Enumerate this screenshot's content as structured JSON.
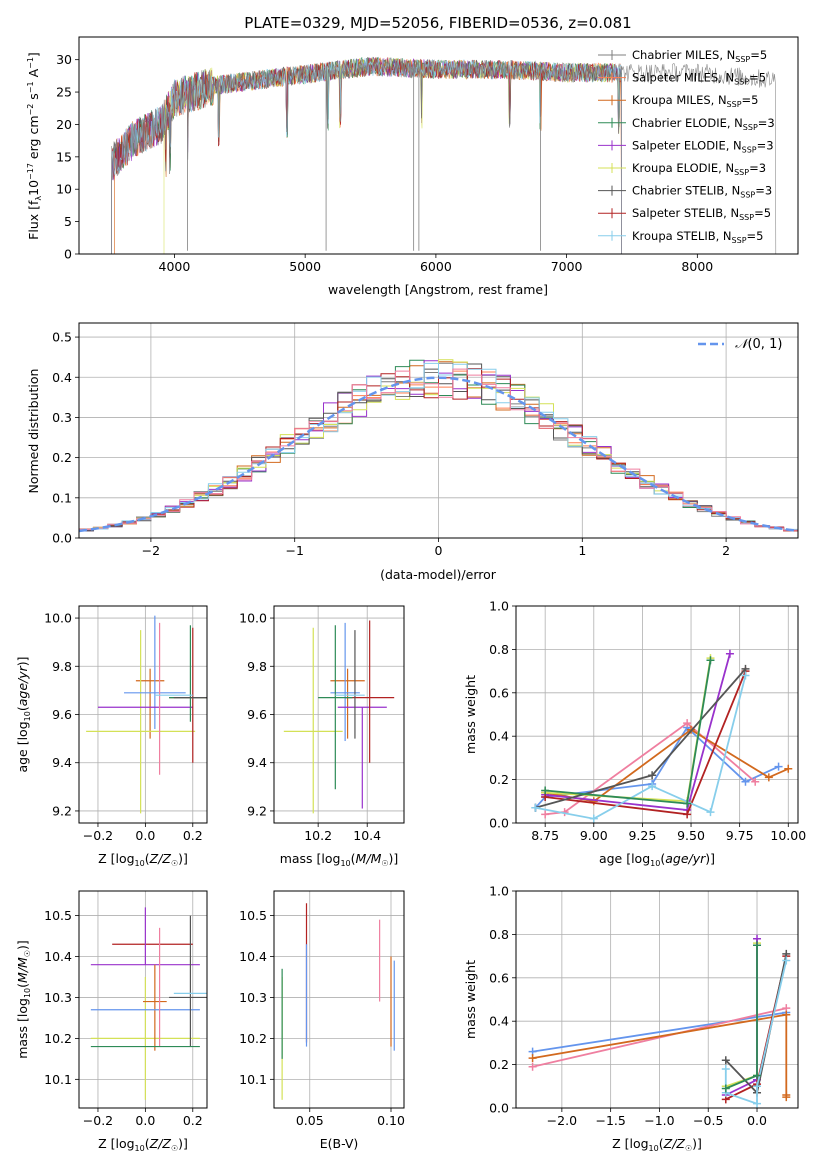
{
  "figure_title": "PLATE=0329, MJD=52056, FIBERID=0536, z=0.081",
  "colors": {
    "Chabrier MILES": "#7f7f7f",
    "Salpeter MILES": "#ff7f50",
    "Kroupa MILES": "#d2691e",
    "Chabrier ELODIE": "#2e8b57",
    "Salpeter ELODIE": "#9932cc",
    "Kroupa ELODIE": "#d4e157",
    "Chabrier STELIB": "#555555",
    "Salpeter STELIB": "#b22222",
    "Kroupa STELIB": "#87ceeb",
    "gauss": "#6495ed",
    "extra_blue": "#6a8fd8",
    "extra_pink": "#ef7fa0"
  },
  "chart_data": [
    {
      "type": "line",
      "id": "spectrum",
      "title": "PLATE=0329, MJD=52056, FIBERID=0536, z=0.081",
      "xlabel": "wavelength [Angstrom, rest frame]",
      "ylabel": "Flux [fλ10⁻¹⁷ erg cm⁻² s⁻¹ A⁻¹]",
      "xlim": [
        3270,
        8770
      ],
      "ylim": [
        0,
        33.5
      ],
      "xticks": [
        4000,
        5000,
        6000,
        7000,
        8000
      ],
      "yticks": [
        0,
        5,
        10,
        15,
        20,
        25,
        30
      ],
      "grid": false,
      "legend_position": "upper right",
      "legend": [
        {
          "label_html": "Chabrier MILES, N<tspan font-size='8' dy='3'>SSP</tspan><tspan dy='-3'>=5</tspan>",
          "color": "#7f7f7f"
        },
        {
          "label_html": "Salpeter MILES, N<tspan font-size='8' dy='3'>SSP</tspan><tspan dy='-3'>=5</tspan>",
          "color": "#ff7f50"
        },
        {
          "label_html": "Kroupa MILES, N<tspan font-size='8' dy='3'>SSP</tspan><tspan dy='-3'>=5</tspan>",
          "color": "#d2691e"
        },
        {
          "label_html": "Chabrier ELODIE, N<tspan font-size='8' dy='3'>SSP</tspan><tspan dy='-3'>=3</tspan>",
          "color": "#2e8b57"
        },
        {
          "label_html": "Salpeter ELODIE, N<tspan font-size='8' dy='3'>SSP</tspan><tspan dy='-3'>=3</tspan>",
          "color": "#9932cc"
        },
        {
          "label_html": "Kroupa ELODIE, N<tspan font-size='8' dy='3'>SSP</tspan><tspan dy='-3'>=3</tspan>",
          "color": "#d4e157"
        },
        {
          "label_html": "Chabrier STELIB, N<tspan font-size='8' dy='3'>SSP</tspan><tspan dy='-3'>=3</tspan>",
          "color": "#555555"
        },
        {
          "label_html": "Salpeter STELIB, N<tspan font-size='8' dy='3'>SSP</tspan><tspan dy='-3'>=5</tspan>",
          "color": "#b22222"
        },
        {
          "label_html": "Kroupa STELIB, N<tspan font-size='8' dy='3'>SSP</tspan><tspan dy='-3'>=5</tspan>",
          "color": "#87ceeb"
        }
      ],
      "data_series": {
        "color": "#808080",
        "x_range": [
          3520,
          8600
        ]
      },
      "spectrum_profile": [
        [
          3520,
          14
        ],
        [
          3700,
          18
        ],
        [
          3900,
          20
        ],
        [
          4000,
          24
        ],
        [
          4300,
          26
        ],
        [
          4700,
          27
        ],
        [
          5100,
          28
        ],
        [
          5500,
          29
        ],
        [
          6000,
          28.5
        ],
        [
          6500,
          28.5
        ],
        [
          7000,
          28
        ],
        [
          7500,
          28
        ],
        [
          8000,
          28
        ],
        [
          8500,
          27
        ]
      ],
      "absorption_lines": [
        3934,
        3969,
        4102,
        4340,
        4861,
        5175,
        5269,
        5890,
        6563,
        6800,
        7400
      ],
      "note": "model curves drawn with small deterministic noise around profile"
    },
    {
      "type": "histogram",
      "id": "residuals",
      "xlabel": "(data-model)/error",
      "ylabel": "Normed distribution",
      "xlim": [
        -2.5,
        2.5
      ],
      "ylim": [
        0,
        0.535
      ],
      "xticks": [
        -2,
        -1,
        0,
        1,
        2
      ],
      "yticks": [
        0.0,
        0.1,
        0.2,
        0.3,
        0.4,
        0.5
      ],
      "grid": true,
      "legend": [
        {
          "label": "𝒩(0, 1)",
          "color": "#6495ed",
          "style": "dashed"
        }
      ],
      "bin_width": 0.1,
      "note": "each model series drawn as a step histogram approximating a standard normal"
    },
    {
      "type": "scatter",
      "id": "age_vs_Z",
      "xlabel": "Z [log10(Z/Z☉)]",
      "ylabel": "age  [log10(age/yr)]",
      "xlim": [
        -0.28,
        0.26
      ],
      "ylim": [
        9.15,
        10.05
      ],
      "xticks": [
        -0.2,
        0.0,
        0.2
      ],
      "yticks": [
        9.2,
        9.4,
        9.6,
        9.8,
        10.0
      ],
      "grid": true,
      "errorbars": [
        {
          "x": 0.02,
          "y": 9.74,
          "xerr": 0.06,
          "yerr_low": 0.24,
          "yerr_high": 0.05,
          "color": "#d2691e"
        },
        {
          "x": -0.02,
          "y": 9.53,
          "xerr": 0.23,
          "yerr_low": 0.34,
          "yerr_high": 0.42,
          "color": "#d4e157"
        },
        {
          "x": 0.04,
          "y": 9.69,
          "xerr": 0.13,
          "yerr_low": 0.15,
          "yerr_high": 0.32,
          "color": "#6495ed"
        },
        {
          "x": 0.0,
          "y": 9.63,
          "xerr": 0.2,
          "yerr_low": 0.0,
          "yerr_high": 0.0,
          "color": "#9932cc"
        },
        {
          "x": 0.06,
          "y": 9.6,
          "xerr": 0.0,
          "yerr_low": 0.25,
          "yerr_high": 0.38,
          "color": "#ef7fa0"
        },
        {
          "x": 0.2,
          "y": 9.67,
          "xerr": 0.1,
          "yerr_low": 0.27,
          "yerr_high": 0.29,
          "color": "#b22222"
        },
        {
          "x": 0.19,
          "y": 9.67,
          "xerr": 0.09,
          "yerr_low": 0.1,
          "yerr_high": 0.3,
          "color": "#2e8b57"
        },
        {
          "x": 0.2,
          "y": 9.67,
          "xerr": 0.08,
          "yerr_low": 0.0,
          "yerr_high": 0.0,
          "color": "#555555"
        },
        {
          "x": 0.12,
          "y": 9.68,
          "xerr": 0.08,
          "yerr_low": 0.0,
          "yerr_high": 0.0,
          "color": "#87ceeb"
        }
      ]
    },
    {
      "type": "scatter",
      "id": "age_vs_mass",
      "xlabel": "mass [log10(M/M☉)]",
      "ylabel": "",
      "xlim": [
        10.02,
        10.55
      ],
      "ylim": [
        9.15,
        10.05
      ],
      "xticks": [
        10.2,
        10.4
      ],
      "yticks": [
        9.2,
        9.4,
        9.6,
        9.8,
        10.0
      ],
      "grid": true,
      "errorbars": [
        {
          "x": 10.32,
          "y": 9.74,
          "xerr": 0.07,
          "yerr_low": 0.24,
          "yerr_high": 0.05,
          "color": "#d2691e"
        },
        {
          "x": 10.18,
          "y": 9.53,
          "xerr": 0.12,
          "yerr_low": 0.34,
          "yerr_high": 0.43,
          "color": "#d4e157"
        },
        {
          "x": 10.31,
          "y": 9.69,
          "xerr": 0.06,
          "yerr_low": 0.2,
          "yerr_high": 0.29,
          "color": "#6495ed"
        },
        {
          "x": 10.38,
          "y": 9.63,
          "xerr": 0.1,
          "yerr_low": 0.42,
          "yerr_high": 0.0,
          "color": "#9932cc"
        },
        {
          "x": 10.41,
          "y": 9.67,
          "xerr": 0.1,
          "yerr_low": 0.27,
          "yerr_high": 0.32,
          "color": "#b22222"
        },
        {
          "x": 10.27,
          "y": 9.67,
          "xerr": 0.07,
          "yerr_low": 0.38,
          "yerr_high": 0.3,
          "color": "#2e8b57"
        },
        {
          "x": 10.35,
          "y": 9.6,
          "xerr": 0.0,
          "yerr_low": 0.1,
          "yerr_high": 0.35,
          "color": "#555555"
        },
        {
          "x": 10.33,
          "y": 9.68,
          "xerr": 0.06,
          "yerr_low": 0.0,
          "yerr_high": 0.0,
          "color": "#87ceeb"
        }
      ]
    },
    {
      "type": "line",
      "id": "massweight_vs_age",
      "xlabel": "age  [log10(age/yr)]",
      "ylabel": "mass weight",
      "xlim": [
        8.6,
        10.05
      ],
      "ylim": [
        0,
        1.0
      ],
      "xticks": [
        8.75,
        9.0,
        9.25,
        9.5,
        9.75,
        10.0
      ],
      "yticks": [
        0.0,
        0.2,
        0.4,
        0.6,
        0.8,
        1.0
      ],
      "grid": true,
      "series": [
        {
          "color": "#6495ed",
          "x": [
            8.7,
            8.75,
            9.3,
            9.48,
            9.78,
            9.95
          ],
          "y": [
            0.07,
            0.12,
            0.18,
            0.44,
            0.19,
            0.26
          ]
        },
        {
          "color": "#ef7fa0",
          "x": [
            8.75,
            8.85,
            9.48,
            9.83
          ],
          "y": [
            0.04,
            0.05,
            0.46,
            0.19
          ]
        },
        {
          "color": "#d2691e",
          "x": [
            8.75,
            9.0,
            9.5,
            9.9,
            10.0
          ],
          "y": [
            0.14,
            0.1,
            0.43,
            0.21,
            0.25
          ]
        },
        {
          "color": "#d4e157",
          "x": [
            8.75,
            9.48,
            9.6
          ],
          "y": [
            0.14,
            0.1,
            0.76
          ]
        },
        {
          "color": "#9932cc",
          "x": [
            8.75,
            9.48,
            9.7
          ],
          "y": [
            0.13,
            0.06,
            0.78
          ]
        },
        {
          "color": "#b22222",
          "x": [
            8.75,
            9.48,
            9.78
          ],
          "y": [
            0.12,
            0.04,
            0.7
          ]
        },
        {
          "color": "#555555",
          "x": [
            8.7,
            9.3,
            9.78
          ],
          "y": [
            0.07,
            0.22,
            0.71
          ]
        },
        {
          "color": "#87ceeb",
          "x": [
            8.7,
            9.0,
            9.3,
            9.6,
            9.78
          ],
          "y": [
            0.07,
            0.02,
            0.17,
            0.05,
            0.68
          ]
        },
        {
          "color": "#2e8b57",
          "x": [
            8.75,
            9.48,
            9.6
          ],
          "y": [
            0.15,
            0.09,
            0.75
          ]
        }
      ]
    },
    {
      "type": "scatter",
      "id": "mass_vs_Z",
      "xlabel": "Z [log10(Z/Z☉)]",
      "ylabel": "mass [log10(M/M☉)]",
      "xlim": [
        -0.28,
        0.26
      ],
      "ylim": [
        10.03,
        10.56
      ],
      "xticks": [
        -0.2,
        0.0,
        0.2
      ],
      "yticks": [
        10.1,
        10.2,
        10.3,
        10.4,
        10.5
      ],
      "grid": true,
      "errorbars": [
        {
          "x": 0.03,
          "y": 10.43,
          "xerr": 0.17,
          "yerr_low": 0.0,
          "yerr_high": 0.0,
          "color": "#b22222"
        },
        {
          "x": 0.0,
          "y": 10.38,
          "xerr": 0.23,
          "yerr_low": 0.0,
          "yerr_high": 0.14,
          "color": "#9932cc"
        },
        {
          "x": 0.0,
          "y": 10.2,
          "xerr": 0.23,
          "yerr_low": 0.15,
          "yerr_high": 0.15,
          "color": "#d4e157"
        },
        {
          "x": 0.04,
          "y": 10.29,
          "xerr": 0.05,
          "yerr_low": 0.12,
          "yerr_high": 0.09,
          "color": "#d2691e"
        },
        {
          "x": 0.0,
          "y": 10.27,
          "xerr": 0.23,
          "yerr_low": 0.0,
          "yerr_high": 0.0,
          "color": "#6495ed"
        },
        {
          "x": 0.06,
          "y": 10.33,
          "xerr": 0.0,
          "yerr_low": 0.15,
          "yerr_high": 0.14,
          "color": "#ef7fa0"
        },
        {
          "x": 0.19,
          "y": 10.3,
          "xerr": 0.09,
          "yerr_low": 0.12,
          "yerr_high": 0.2,
          "color": "#555555"
        },
        {
          "x": 0.0,
          "y": 10.18,
          "xerr": 0.23,
          "yerr_low": 0.0,
          "yerr_high": 0.0,
          "color": "#2e8b57"
        },
        {
          "x": 0.19,
          "y": 10.31,
          "xerr": 0.07,
          "yerr_low": 0.0,
          "yerr_high": 0.0,
          "color": "#87ceeb"
        }
      ]
    },
    {
      "type": "scatter",
      "id": "mass_vs_EBV",
      "xlabel": "E(B-V)",
      "ylabel": "",
      "xlim": [
        0.028,
        0.108
      ],
      "ylim": [
        10.03,
        10.56
      ],
      "xticks": [
        0.05,
        0.1
      ],
      "yticks": [
        10.1,
        10.2,
        10.3,
        10.4,
        10.5
      ],
      "grid": true,
      "errorbars": [
        {
          "x": 0.033,
          "y": 10.2,
          "xerr": 0.0,
          "yerr_low": 0.15,
          "yerr_high": 0.15,
          "color": "#d4e157"
        },
        {
          "x": 0.033,
          "y": 10.25,
          "xerr": 0.0,
          "yerr_low": 0.1,
          "yerr_high": 0.12,
          "color": "#2e8b57"
        },
        {
          "x": 0.048,
          "y": 10.38,
          "xerr": 0.0,
          "yerr_low": 0.19,
          "yerr_high": 0.15,
          "color": "#b22222"
        },
        {
          "x": 0.048,
          "y": 10.33,
          "xerr": 0.0,
          "yerr_low": 0.15,
          "yerr_high": 0.1,
          "color": "#6495ed"
        },
        {
          "x": 0.093,
          "y": 10.39,
          "xerr": 0.0,
          "yerr_low": 0.1,
          "yerr_high": 0.1,
          "color": "#ef7fa0"
        },
        {
          "x": 0.1,
          "y": 10.3,
          "xerr": 0.0,
          "yerr_low": 0.12,
          "yerr_high": 0.1,
          "color": "#d2691e"
        },
        {
          "x": 0.102,
          "y": 10.29,
          "xerr": 0.0,
          "yerr_low": 0.12,
          "yerr_high": 0.1,
          "color": "#6495ed"
        }
      ]
    },
    {
      "type": "line",
      "id": "massweight_vs_Z",
      "xlabel": "Z [log10(Z/Z☉)]",
      "ylabel": "mass weight",
      "xlim": [
        -2.47,
        0.42
      ],
      "ylim": [
        0,
        1.0
      ],
      "xticks": [
        -2.0,
        -1.5,
        -1.0,
        -0.5,
        0.0
      ],
      "yticks": [
        0.0,
        0.2,
        0.4,
        0.6,
        0.8,
        1.0
      ],
      "grid": true,
      "series": [
        {
          "color": "#6495ed",
          "x": [
            -2.3,
            0.3
          ],
          "y": [
            0.26,
            0.44
          ]
        },
        {
          "color": "#ef7fa0",
          "x": [
            -2.3,
            0.3
          ],
          "y": [
            0.19,
            0.46
          ]
        },
        {
          "color": "#d2691e",
          "x": [
            -2.3,
            0.3,
            0.3,
            0.3
          ],
          "y": [
            0.23,
            0.43,
            0.06,
            0.05
          ]
        },
        {
          "color": "#d4e157",
          "x": [
            -0.32,
            0.0,
            0.0
          ],
          "y": [
            0.1,
            0.15,
            0.76
          ]
        },
        {
          "color": "#9932cc",
          "x": [
            -0.32,
            0.0,
            0.0
          ],
          "y": [
            0.06,
            0.13,
            0.78
          ]
        },
        {
          "color": "#b22222",
          "x": [
            -0.32,
            0.0,
            0.3
          ],
          "y": [
            0.04,
            0.11,
            0.7
          ]
        },
        {
          "color": "#555555",
          "x": [
            -0.32,
            0.0,
            0.3
          ],
          "y": [
            0.22,
            0.07,
            0.71
          ]
        },
        {
          "color": "#87ceeb",
          "x": [
            -0.32,
            -0.32,
            0.0,
            0.0,
            0.3
          ],
          "y": [
            0.18,
            0.07,
            0.02,
            0.1,
            0.68
          ]
        },
        {
          "color": "#2e8b57",
          "x": [
            -0.32,
            0.0,
            0.0
          ],
          "y": [
            0.09,
            0.15,
            0.75
          ]
        }
      ]
    }
  ]
}
